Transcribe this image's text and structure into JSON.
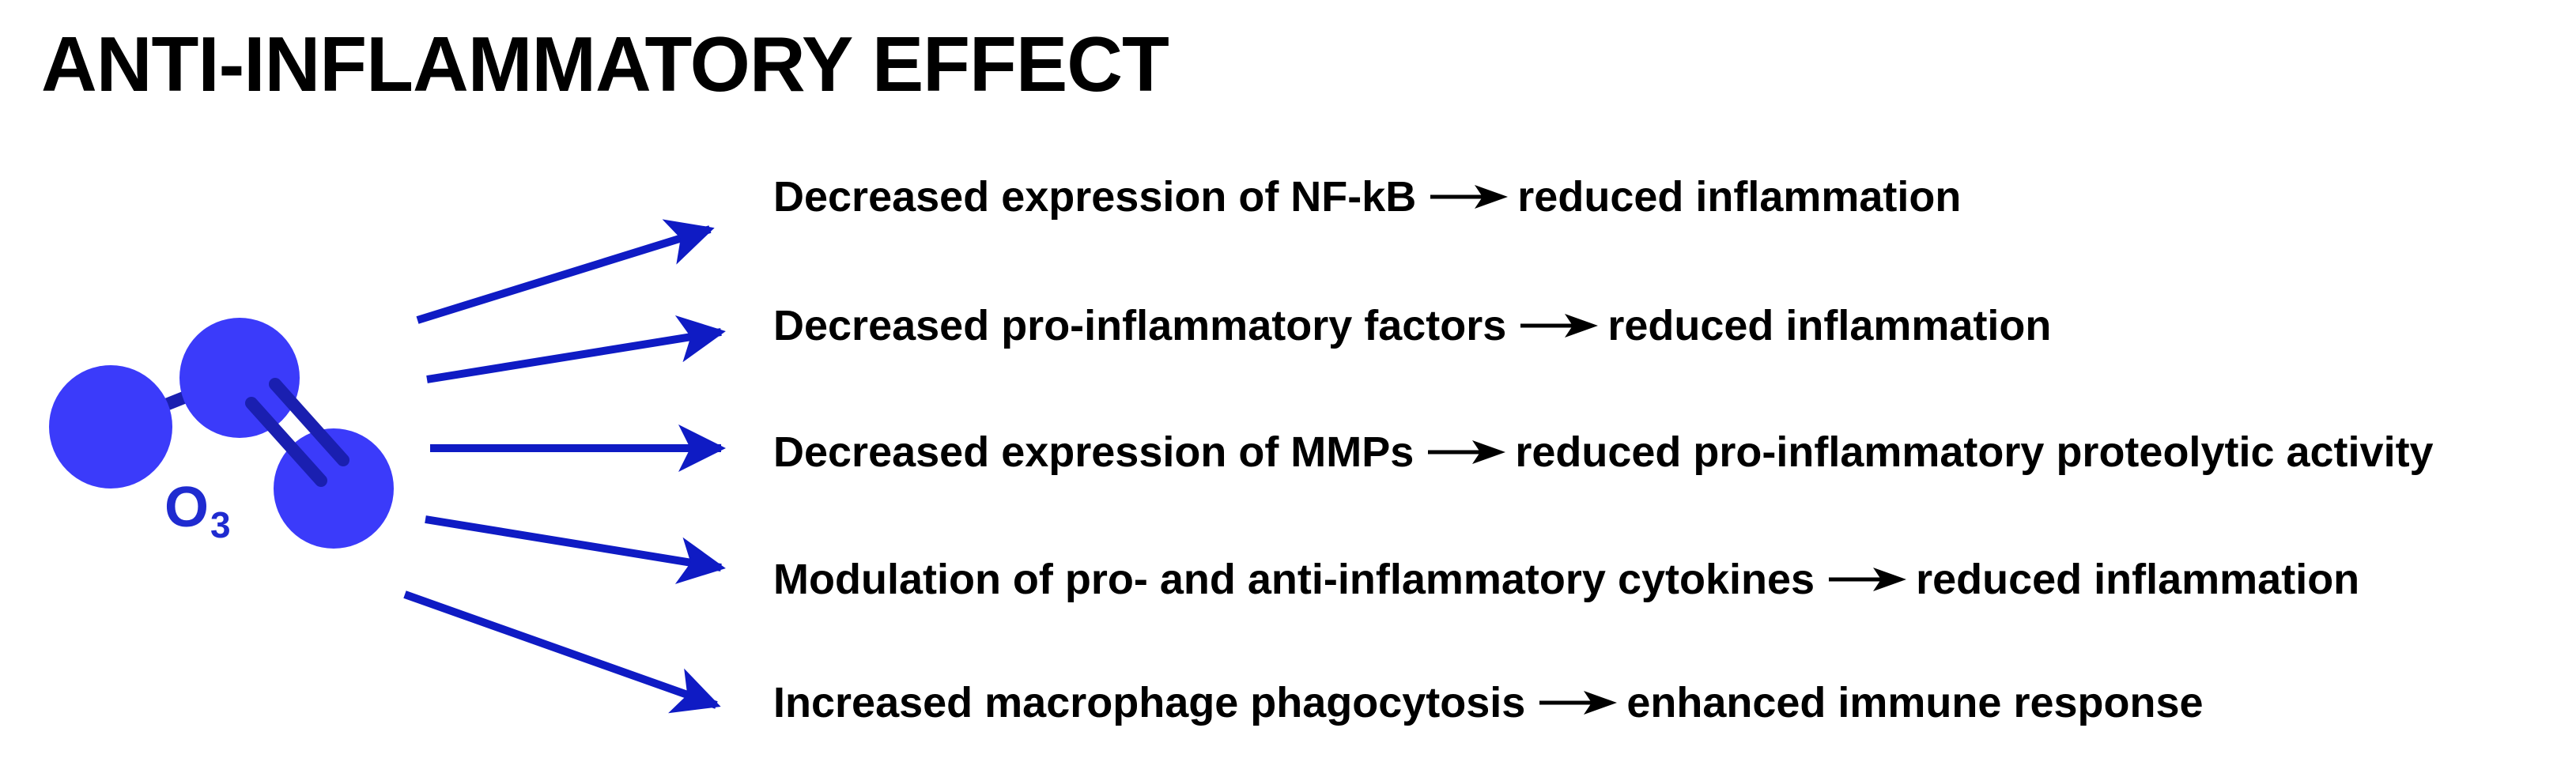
{
  "title": "ANTI-INFLAMMATORY EFFECT",
  "molecule": {
    "symbol": "O",
    "subscript": "3"
  },
  "effects": [
    {
      "cause": "Decreased expression of NF-kB",
      "result": "reduced inflammation"
    },
    {
      "cause": "Decreased pro-inflammatory factors",
      "result": "reduced inflammation"
    },
    {
      "cause": "Decreased expression of MMPs",
      "result": "reduced pro-inflammatory proteolytic activity"
    },
    {
      "cause": "Modulation of pro- and anti-inflammatory cytokines",
      "result": "reduced inflammation"
    },
    {
      "cause": "Increased macrophage phagocytosis",
      "result": "enhanced immune response"
    }
  ],
  "colors": {
    "atom": "#3b3bfa",
    "bond": "#1a1fb0",
    "arrow": "#0f1bc4",
    "label": "#1f2bd0",
    "text": "#000000"
  }
}
